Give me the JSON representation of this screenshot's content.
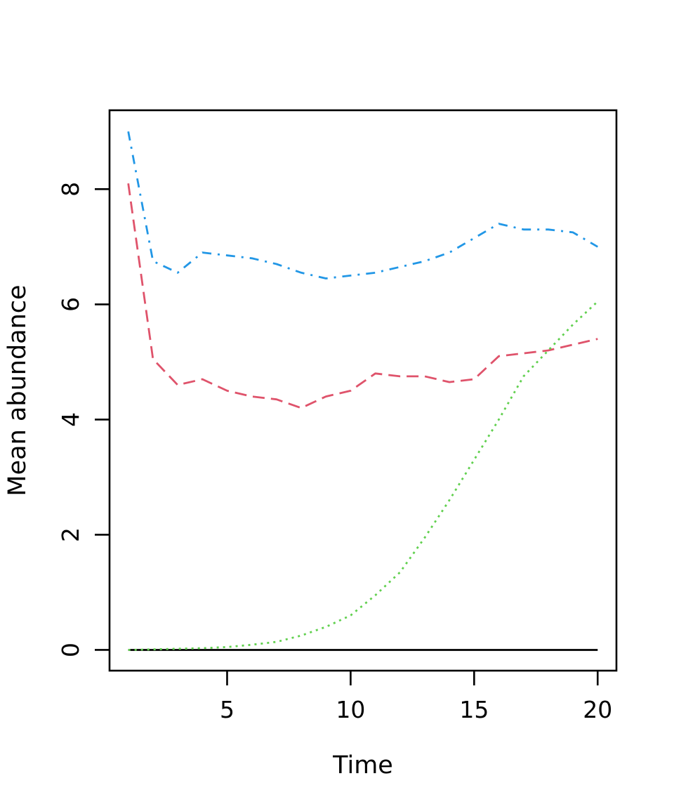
{
  "chart_data": {
    "type": "line",
    "title": "",
    "xlabel": "Time",
    "ylabel": "Mean abundance",
    "x": [
      1,
      2,
      3,
      4,
      5,
      6,
      7,
      8,
      9,
      10,
      11,
      12,
      13,
      14,
      15,
      16,
      17,
      18,
      19,
      20
    ],
    "series": [
      {
        "name": "black-solid-zero-line",
        "color": "#000000",
        "linetype": "solid",
        "values": [
          0,
          0,
          0,
          0,
          0,
          0,
          0,
          0,
          0,
          0,
          0,
          0,
          0,
          0,
          0,
          0,
          0,
          0,
          0,
          0
        ]
      },
      {
        "name": "red-dashed-line",
        "color": "#DF536B",
        "linetype": "dashed",
        "values": [
          8.1,
          5.05,
          4.6,
          4.7,
          4.5,
          4.4,
          4.35,
          4.2,
          4.4,
          4.5,
          4.8,
          4.75,
          4.75,
          4.65,
          4.7,
          5.1,
          5.15,
          5.2,
          5.3,
          5.4
        ]
      },
      {
        "name": "green-dotted-line",
        "color": "#61D04F",
        "linetype": "dotted",
        "values": [
          0.0,
          0.01,
          0.02,
          0.03,
          0.05,
          0.09,
          0.14,
          0.25,
          0.4,
          0.6,
          0.95,
          1.35,
          1.95,
          2.6,
          3.3,
          4.0,
          4.75,
          5.2,
          5.65,
          6.05
        ]
      },
      {
        "name": "blue-dotdash-line",
        "color": "#2297E6",
        "linetype": "dotdash",
        "values": [
          9.0,
          6.75,
          6.55,
          6.9,
          6.85,
          6.8,
          6.7,
          6.55,
          6.45,
          6.5,
          6.55,
          6.65,
          6.75,
          6.9,
          7.15,
          7.4,
          7.3,
          7.3,
          7.25,
          7.0
        ]
      }
    ],
    "x_ticks": [
      5,
      10,
      15,
      20
    ],
    "y_ticks": [
      0,
      2,
      4,
      6,
      8
    ],
    "xlim": [
      0.24,
      20.76
    ],
    "ylim": [
      -0.36,
      9.37
    ],
    "grid": false,
    "legend": "none",
    "background": "#ffffff",
    "box_color": "#000000"
  }
}
